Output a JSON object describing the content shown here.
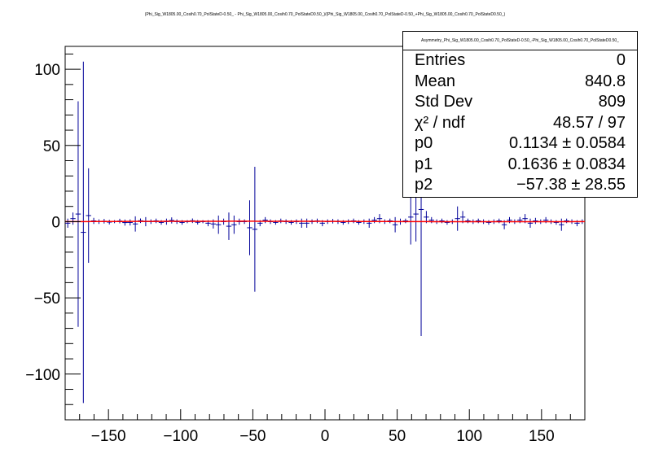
{
  "title": "(Phi_Sig_W1805.00_Cosih0.70_PolStateD-0.50_ - Phi_Sig_W1805.00_Cosih0.70_PolStateD0.50_)/(Phi_Sig_W1805.00_Cosih0.70_PolStateD-0.50_+Phi_Sig_W1805.00_Cosih0.70_PolStateD0.50_)",
  "stats": {
    "name": "Asymmetry_Phi_Sig_W1805.00_Cosih0.70_PolStateD-0.50_-Phi_Sig_W1805.00_Cosih0.70_PolStateD0.50_",
    "rows": [
      {
        "label": "Entries",
        "value": "0"
      },
      {
        "label": "Mean",
        "value": "840.8"
      },
      {
        "label": "Std Dev",
        "value": "809"
      },
      {
        "label": "χ² / ndf",
        "value": "48.57 / 97"
      },
      {
        "label": "p0",
        "value": "0.1134 ± 0.0584"
      },
      {
        "label": "p1",
        "value": "0.1636 ± 0.0834"
      },
      {
        "label": "p2",
        "value": "−57.38 ± 28.55"
      }
    ]
  },
  "colors": {
    "data": "#000099",
    "fit": "#ff0000",
    "axis": "#000000"
  },
  "chart_data": {
    "type": "scatter",
    "xlim": [
      -180,
      180
    ],
    "ylim": [
      -130,
      115
    ],
    "xticks": [
      -150,
      -100,
      -50,
      0,
      50,
      100,
      150
    ],
    "xtick_labels": [
      "−150",
      "−100",
      "−50",
      "0",
      "50",
      "100",
      "150"
    ],
    "yticks": [
      -100,
      -50,
      0,
      50,
      100
    ],
    "ytick_labels": [
      "−100",
      "−50",
      "0",
      "50",
      "100"
    ],
    "bin_width": 3.6,
    "points": [
      {
        "x": -178.2,
        "y": -1.0,
        "err": 3
      },
      {
        "x": -174.6,
        "y": 2.0,
        "err": 4
      },
      {
        "x": -171.0,
        "y": 5.0,
        "err": 74
      },
      {
        "x": -167.4,
        "y": -7.0,
        "err": 112
      },
      {
        "x": -163.8,
        "y": 4.0,
        "err": 31
      },
      {
        "x": -160.2,
        "y": 0.5,
        "err": 2
      },
      {
        "x": -156.6,
        "y": 0.0,
        "err": 1.5
      },
      {
        "x": -153.0,
        "y": 0.3,
        "err": 1.5
      },
      {
        "x": -149.4,
        "y": -0.3,
        "err": 1.5
      },
      {
        "x": -145.8,
        "y": 0.0,
        "err": 1
      },
      {
        "x": -142.2,
        "y": 0.4,
        "err": 1.5
      },
      {
        "x": -138.6,
        "y": -0.6,
        "err": 2
      },
      {
        "x": -135.0,
        "y": -0.5,
        "err": 2
      },
      {
        "x": -131.4,
        "y": -1.5,
        "err": 5
      },
      {
        "x": -127.8,
        "y": 0.6,
        "err": 1.5
      },
      {
        "x": -124.2,
        "y": 0.0,
        "err": 3
      },
      {
        "x": -120.6,
        "y": 0.0,
        "err": 1.5
      },
      {
        "x": -117.0,
        "y": 0.5,
        "err": 1.5
      },
      {
        "x": -113.4,
        "y": -0.5,
        "err": 1.5
      },
      {
        "x": -109.8,
        "y": 0.0,
        "err": 2
      },
      {
        "x": -106.2,
        "y": 0.8,
        "err": 2
      },
      {
        "x": -102.6,
        "y": 0.0,
        "err": 1.5
      },
      {
        "x": -99.0,
        "y": -0.5,
        "err": 1.5
      },
      {
        "x": -95.4,
        "y": 0.0,
        "err": 1
      },
      {
        "x": -91.8,
        "y": 0.6,
        "err": 1.5
      },
      {
        "x": -88.2,
        "y": -0.4,
        "err": 1.5
      },
      {
        "x": -84.6,
        "y": 0.0,
        "err": 1
      },
      {
        "x": -81.0,
        "y": -1.0,
        "err": 2
      },
      {
        "x": -77.4,
        "y": -1.5,
        "err": 3
      },
      {
        "x": -73.8,
        "y": -2.0,
        "err": 6
      },
      {
        "x": -70.2,
        "y": 0.0,
        "err": 2
      },
      {
        "x": -66.6,
        "y": -3.0,
        "err": 9
      },
      {
        "x": -63.0,
        "y": -2.0,
        "err": 6
      },
      {
        "x": -59.4,
        "y": 0.0,
        "err": 2
      },
      {
        "x": -55.8,
        "y": 0.0,
        "err": 1.5
      },
      {
        "x": -52.2,
        "y": -4.0,
        "err": 18
      },
      {
        "x": -48.6,
        "y": -5.0,
        "err": 41
      },
      {
        "x": -45.0,
        "y": -1.0,
        "err": 2
      },
      {
        "x": -41.4,
        "y": 1.0,
        "err": 2
      },
      {
        "x": -37.8,
        "y": 0.0,
        "err": 1.5
      },
      {
        "x": -34.2,
        "y": -0.5,
        "err": 1.5
      },
      {
        "x": -30.6,
        "y": 0.5,
        "err": 1.5
      },
      {
        "x": -27.0,
        "y": 0.0,
        "err": 1.5
      },
      {
        "x": -23.4,
        "y": -0.5,
        "err": 1.5
      },
      {
        "x": -19.8,
        "y": 0.0,
        "err": 1.5
      },
      {
        "x": -16.2,
        "y": -1.0,
        "err": 3
      },
      {
        "x": -12.6,
        "y": -1.0,
        "err": 3
      },
      {
        "x": -9.0,
        "y": 0.0,
        "err": 1.5
      },
      {
        "x": -5.4,
        "y": 0.5,
        "err": 1.5
      },
      {
        "x": -1.8,
        "y": -1.0,
        "err": 2
      },
      {
        "x": 1.8,
        "y": 0.0,
        "err": 1.5
      },
      {
        "x": 5.4,
        "y": 0.3,
        "err": 1.5
      },
      {
        "x": 9.0,
        "y": 0.0,
        "err": 1.5
      },
      {
        "x": 12.6,
        "y": -0.5,
        "err": 1.5
      },
      {
        "x": 16.2,
        "y": 0.0,
        "err": 1.5
      },
      {
        "x": 19.8,
        "y": 0.5,
        "err": 1.5
      },
      {
        "x": 23.4,
        "y": -0.5,
        "err": 1.5
      },
      {
        "x": 27.0,
        "y": 0.0,
        "err": 1.5
      },
      {
        "x": 30.6,
        "y": -1.0,
        "err": 3
      },
      {
        "x": 34.2,
        "y": 1.0,
        "err": 2
      },
      {
        "x": 37.8,
        "y": 2.0,
        "err": 3
      },
      {
        "x": 41.4,
        "y": 0.0,
        "err": 1.5
      },
      {
        "x": 45.0,
        "y": 0.5,
        "err": 1.5
      },
      {
        "x": 48.6,
        "y": -2.0,
        "err": 5
      },
      {
        "x": 52.2,
        "y": 0.0,
        "err": 2
      },
      {
        "x": 55.8,
        "y": 0.5,
        "err": 1.5
      },
      {
        "x": 59.4,
        "y": 3.0,
        "err": 18
      },
      {
        "x": 63.0,
        "y": 5.0,
        "err": 18
      },
      {
        "x": 66.6,
        "y": 8.0,
        "err": 83
      },
      {
        "x": 70.2,
        "y": 3.0,
        "err": 4
      },
      {
        "x": 73.8,
        "y": 1.0,
        "err": 2
      },
      {
        "x": 77.4,
        "y": 0.0,
        "err": 1.5
      },
      {
        "x": 81.0,
        "y": 0.5,
        "err": 1.5
      },
      {
        "x": 84.6,
        "y": -0.5,
        "err": 1.5
      },
      {
        "x": 88.2,
        "y": 0.0,
        "err": 1.5
      },
      {
        "x": 91.8,
        "y": 2.0,
        "err": 8
      },
      {
        "x": 95.4,
        "y": 3.0,
        "err": 4
      },
      {
        "x": 99.0,
        "y": 0.5,
        "err": 1.5
      },
      {
        "x": 102.6,
        "y": 0.0,
        "err": 1.5
      },
      {
        "x": 106.2,
        "y": 0.5,
        "err": 1.5
      },
      {
        "x": 109.8,
        "y": 0.0,
        "err": 1.5
      },
      {
        "x": 113.4,
        "y": -0.5,
        "err": 1.5
      },
      {
        "x": 117.0,
        "y": 0.0,
        "err": 1.5
      },
      {
        "x": 120.6,
        "y": 0.5,
        "err": 1.5
      },
      {
        "x": 124.2,
        "y": -2.0,
        "err": 3
      },
      {
        "x": 127.8,
        "y": 1.0,
        "err": 2
      },
      {
        "x": 131.4,
        "y": 0.0,
        "err": 1.5
      },
      {
        "x": 135.0,
        "y": 1.0,
        "err": 2
      },
      {
        "x": 138.6,
        "y": 2.0,
        "err": 3
      },
      {
        "x": 142.2,
        "y": -1.0,
        "err": 3
      },
      {
        "x": 145.8,
        "y": 0.5,
        "err": 2
      },
      {
        "x": 149.4,
        "y": 0.0,
        "err": 1.5
      },
      {
        "x": 153.0,
        "y": 1.0,
        "err": 2
      },
      {
        "x": 156.6,
        "y": 0.0,
        "err": 1.5
      },
      {
        "x": 160.2,
        "y": -0.5,
        "err": 1.5
      },
      {
        "x": 163.8,
        "y": -2.0,
        "err": 4
      },
      {
        "x": 167.4,
        "y": 0.5,
        "err": 1.5
      },
      {
        "x": 171.0,
        "y": 0.0,
        "err": 1.5
      },
      {
        "x": 174.6,
        "y": -1.0,
        "err": 2
      },
      {
        "x": 178.2,
        "y": 0.0,
        "err": 1.5
      }
    ],
    "fit": {
      "p0": 0.1134,
      "p1": 0.1636,
      "p2": -57.38
    }
  }
}
